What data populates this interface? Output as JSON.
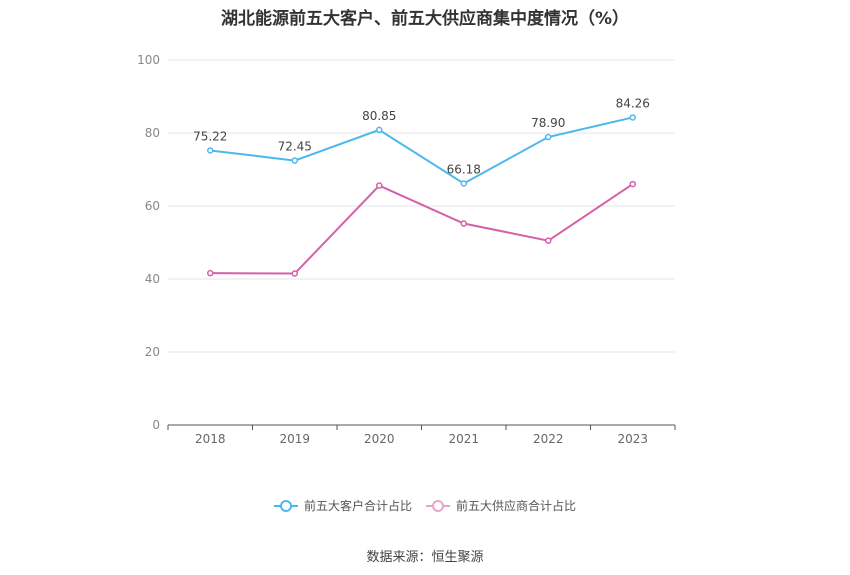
{
  "chart_data": {
    "type": "line",
    "title": "湖北能源前五大客户、前五大供应商集中度情况（%）",
    "categories": [
      "2018",
      "2019",
      "2020",
      "2021",
      "2022",
      "2023"
    ],
    "ylim": [
      0,
      100
    ],
    "yticks": [
      0,
      20,
      40,
      60,
      80,
      100
    ],
    "series": [
      {
        "name": "前五大客户合计占比",
        "color": "#4db8ec",
        "values": [
          75.22,
          72.45,
          80.85,
          66.18,
          78.9,
          84.26
        ],
        "labels": [
          "75.22",
          "72.45",
          "80.85",
          "66.18",
          "78.90",
          "84.26"
        ]
      },
      {
        "name": "前五大供应商合计占比",
        "color": "#d660a8",
        "values": [
          41.6,
          41.5,
          65.6,
          55.2,
          50.5,
          66.0
        ]
      }
    ]
  },
  "source": "数据来源：恒生聚源"
}
